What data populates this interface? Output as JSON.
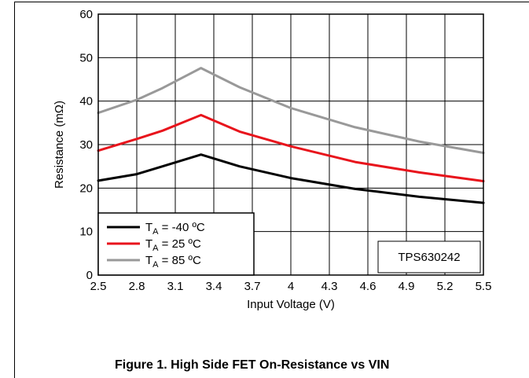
{
  "chart_data": {
    "type": "line",
    "title": "",
    "xlabel": "Input Voltage (V)",
    "ylabel": "Resistance  (mΩ)",
    "xlim": [
      2.5,
      5.5
    ],
    "ylim": [
      0,
      60
    ],
    "x_ticks": [
      "2.5",
      "2.8",
      "3.1",
      "3.4",
      "3.7",
      "4",
      "4.3",
      "4.6",
      "4.9",
      "5.2",
      "5.5"
    ],
    "y_ticks": [
      "0",
      "10",
      "20",
      "30",
      "40",
      "50",
      "60"
    ],
    "grid": true,
    "legend_position": "bottom-left",
    "annotation": "TPS630242",
    "x": [
      2.5,
      2.8,
      3.0,
      3.3,
      3.6,
      4.0,
      4.5,
      5.0,
      5.5
    ],
    "series": [
      {
        "name_main": "T",
        "name_sub": "A",
        "name_rest": " = -40 ºC",
        "color": "#000000",
        "values": [
          21.7,
          23.2,
          25.0,
          27.7,
          25.0,
          22.3,
          19.8,
          18.0,
          16.6
        ]
      },
      {
        "name_main": "T",
        "name_sub": "A",
        "name_rest": " =  25 ºC",
        "color": "#e8141c",
        "values": [
          28.6,
          31.3,
          33.2,
          36.8,
          33.0,
          29.6,
          26.0,
          23.6,
          21.6
        ]
      },
      {
        "name_main": "T",
        "name_sub": "A",
        "name_rest": " =  85 ºC",
        "color": "#999999",
        "values": [
          37.3,
          40.3,
          43.0,
          47.6,
          43.2,
          38.4,
          34.0,
          30.7,
          28.1
        ]
      }
    ]
  },
  "caption": "Figure 1. High Side FET On-Resistance vs VIN"
}
